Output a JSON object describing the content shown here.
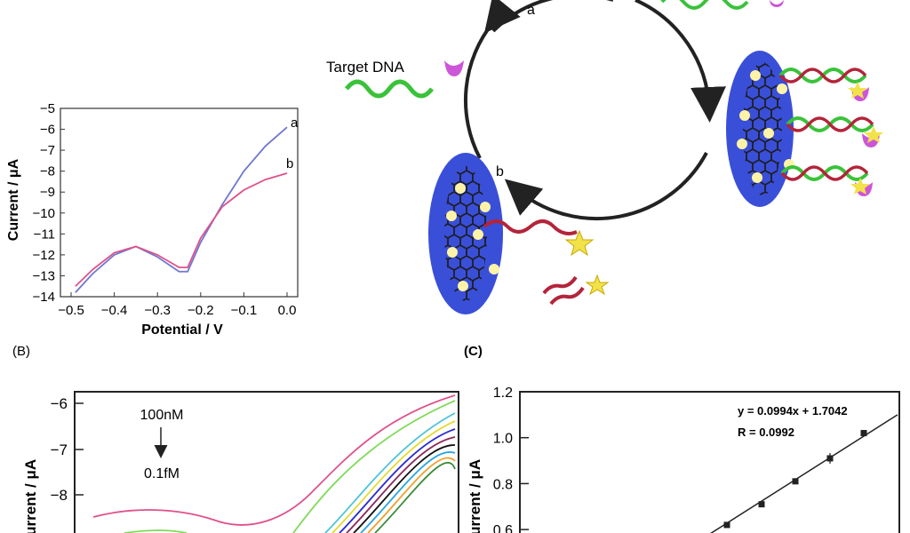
{
  "panel_labels": {
    "b": "(B)",
    "c": "(C)"
  },
  "schematic": {
    "target_label": "Target DNA",
    "state_a": "a",
    "state_b": "b"
  },
  "chart_data": [
    {
      "id": "inset",
      "type": "line",
      "xlabel": "Potential / V",
      "ylabel": "Current / μA",
      "xlim": [
        -0.5,
        0.0
      ],
      "ylim": [
        -14,
        -5
      ],
      "xticks": [
        "−0.5",
        "−0.4",
        "−0.3",
        "−0.2",
        "−0.1",
        "0.0"
      ],
      "yticks": [
        "−5",
        "−6",
        "−7",
        "−8",
        "−9",
        "−10",
        "−11",
        "−12",
        "−13",
        "−14"
      ],
      "series": [
        {
          "name": "a",
          "color": "#6f77cf",
          "x": [
            -0.49,
            -0.45,
            -0.4,
            -0.35,
            -0.3,
            -0.25,
            -0.23,
            -0.2,
            -0.15,
            -0.1,
            -0.05,
            0.0
          ],
          "y": [
            -13.8,
            -12.9,
            -12.0,
            -11.6,
            -12.1,
            -12.8,
            -12.8,
            -11.4,
            -9.6,
            -8.0,
            -6.8,
            -5.9
          ]
        },
        {
          "name": "b",
          "color": "#e0508a",
          "x": [
            -0.49,
            -0.45,
            -0.4,
            -0.35,
            -0.3,
            -0.25,
            -0.23,
            -0.2,
            -0.15,
            -0.1,
            -0.05,
            0.0
          ],
          "y": [
            -13.5,
            -12.7,
            -11.9,
            -11.6,
            -12.0,
            -12.6,
            -12.6,
            -11.2,
            -9.7,
            -8.9,
            -8.4,
            -8.1
          ]
        }
      ]
    },
    {
      "id": "B",
      "type": "line",
      "ylabel": "Current / μA",
      "annotation_top": "100nM",
      "annotation_bottom": "0.1fM",
      "yticks": [
        "−6",
        "−7",
        "−8"
      ],
      "series": [
        {
          "color": "#e0508a"
        },
        {
          "color": "#7ed957"
        },
        {
          "color": "#4cc3d9"
        },
        {
          "color": "#e6d92e"
        },
        {
          "color": "#2a2ad0"
        },
        {
          "color": "#8a2a5a"
        },
        {
          "color": "#111111"
        },
        {
          "color": "#2aa6e0"
        },
        {
          "color": "#f0a030"
        },
        {
          "color": "#3a8a3a"
        }
      ]
    },
    {
      "id": "C",
      "type": "scatter",
      "ylabel": "Current / μA",
      "ylim": [
        0.6,
        1.2
      ],
      "yticks": [
        "1.2",
        "1.0",
        "0.8",
        "0.6"
      ],
      "equation": "y = 0.0994x + 1.7042",
      "r_value": "R = 0.0992",
      "points": [
        0.62,
        0.71,
        0.81,
        0.91,
        1.02
      ]
    }
  ]
}
